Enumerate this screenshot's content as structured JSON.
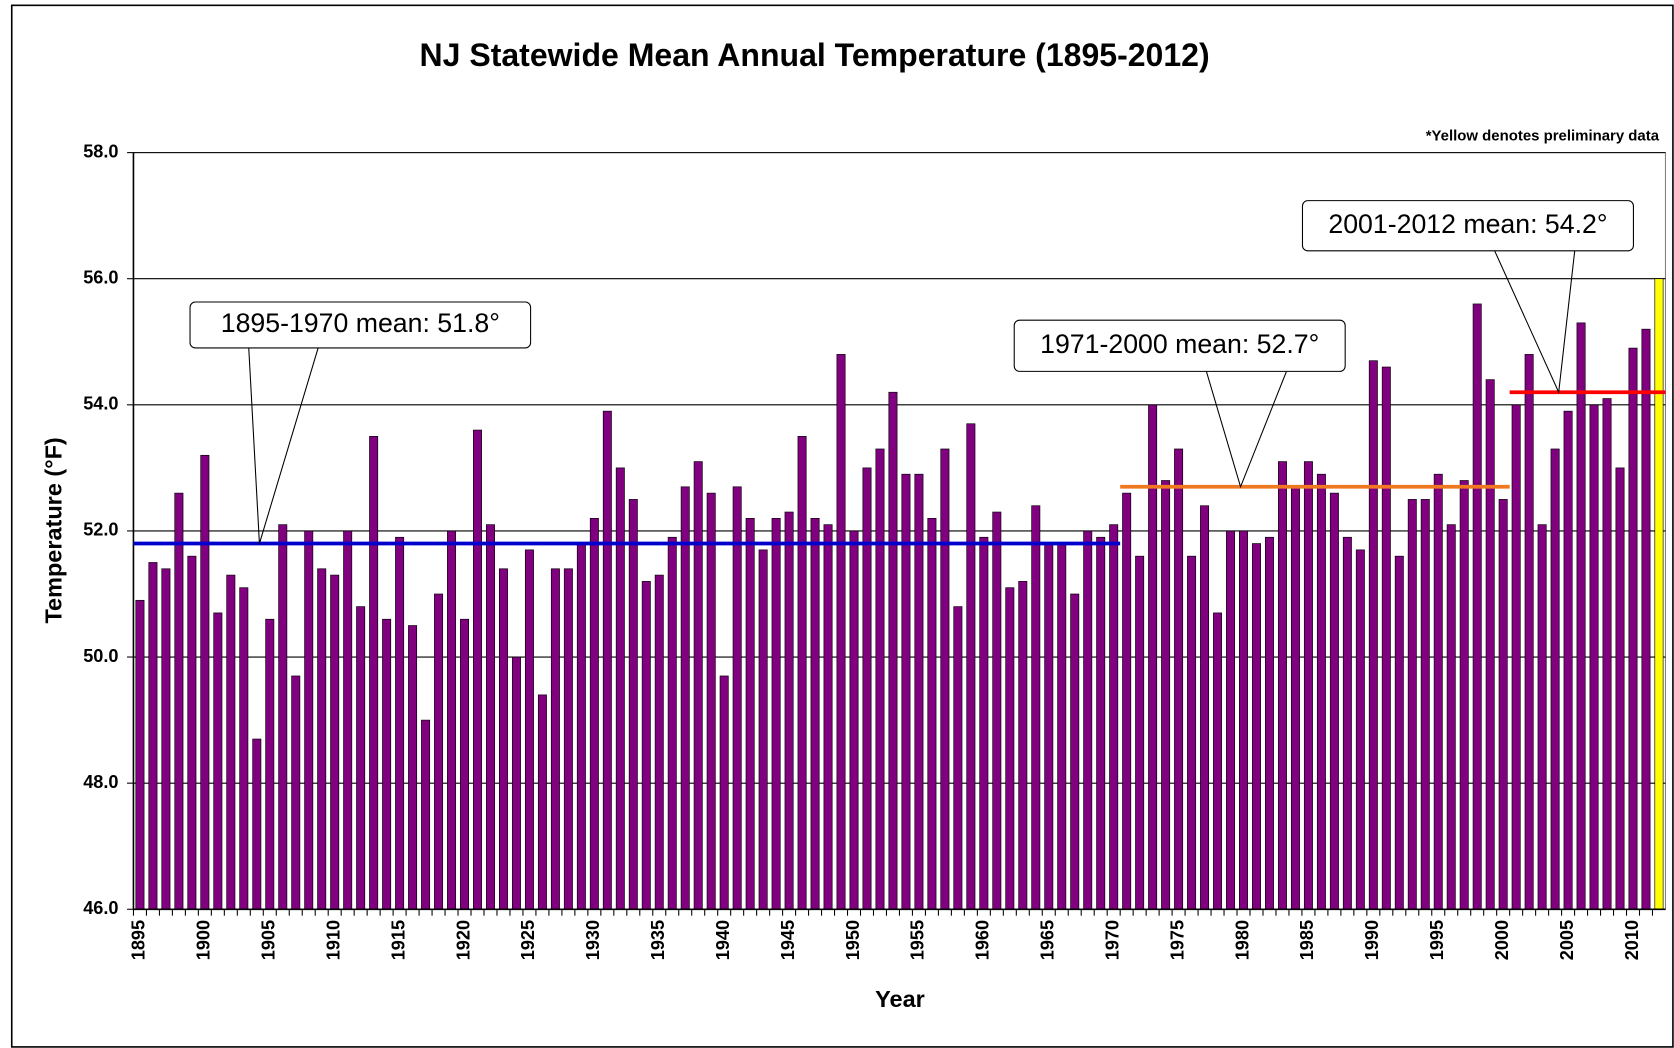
{
  "chart_data": {
    "type": "bar",
    "title": "NJ Statewide Mean Annual Temperature (1895-2012)",
    "note": "*Yellow denotes preliminary data",
    "xlabel": "Year",
    "ylabel": "Temperature (°F)",
    "categories": [
      "1895",
      null,
      null,
      null,
      null,
      "1900",
      null,
      null,
      null,
      null,
      "1905",
      null,
      null,
      null,
      null,
      "1910",
      null,
      null,
      null,
      null,
      "1915",
      null,
      null,
      null,
      null,
      "1920",
      null,
      null,
      null,
      null,
      "1925",
      null,
      null,
      null,
      null,
      "1930",
      null,
      null,
      null,
      null,
      "1935",
      null,
      null,
      null,
      null,
      "1940",
      null,
      null,
      null,
      null,
      "1945",
      null,
      null,
      null,
      null,
      "1950",
      null,
      null,
      null,
      null,
      "1955",
      null,
      null,
      null,
      null,
      "1960",
      null,
      null,
      null,
      null,
      "1965",
      null,
      null,
      null,
      null,
      "1970",
      null,
      null,
      null,
      null,
      "1975",
      null,
      null,
      null,
      null,
      "1980",
      null,
      null,
      null,
      null,
      "1985",
      null,
      null,
      null,
      null,
      "1990",
      null,
      null,
      null,
      null,
      "1995",
      null,
      null,
      null,
      null,
      "2000",
      null,
      null,
      null,
      null,
      "2005",
      null,
      null,
      null,
      null,
      "2010",
      null,
      null
    ],
    "values": [
      50.9,
      51.5,
      51.4,
      52.6,
      51.6,
      53.2,
      50.7,
      51.3,
      51.1,
      48.7,
      50.6,
      52.1,
      49.7,
      52.0,
      51.4,
      51.3,
      52.0,
      50.8,
      53.5,
      50.6,
      51.9,
      50.5,
      49.0,
      51.0,
      52.0,
      50.6,
      53.6,
      52.1,
      51.4,
      50.0,
      51.7,
      49.4,
      51.4,
      51.4,
      51.8,
      52.2,
      53.9,
      53.0,
      52.5,
      51.2,
      51.3,
      51.9,
      52.7,
      53.1,
      52.6,
      49.7,
      52.7,
      52.2,
      51.7,
      52.2,
      52.3,
      53.5,
      52.2,
      52.1,
      54.8,
      52.0,
      53.0,
      53.3,
      54.2,
      52.9,
      52.9,
      52.2,
      53.3,
      50.8,
      53.7,
      51.9,
      52.3,
      51.1,
      51.2,
      52.4,
      51.8,
      51.8,
      51.0,
      52.0,
      51.9,
      52.1,
      52.6,
      51.6,
      54.0,
      52.8,
      53.3,
      51.6,
      52.4,
      50.7,
      52.0,
      52.0,
      51.8,
      51.9,
      53.1,
      52.7,
      53.1,
      52.9,
      52.6,
      51.9,
      51.7,
      54.7,
      54.6,
      51.6,
      52.5,
      52.5,
      52.9,
      52.1,
      52.8,
      55.6,
      54.4,
      52.5,
      54.0,
      54.8,
      52.1,
      53.3,
      53.9,
      55.3,
      54.0,
      54.1,
      53.0,
      54.9,
      55.2,
      56.0
    ],
    "color": "#800080",
    "preliminary_color": "#ffff00",
    "preliminary_years": [
      2012
    ],
    "ylim": [
      46,
      58
    ],
    "yticks": [
      {
        "value": 46,
        "label": "46.0"
      },
      {
        "value": 48,
        "label": "48.0"
      },
      {
        "value": 50,
        "label": "50.0"
      },
      {
        "value": 52,
        "label": "52.0"
      },
      {
        "value": 54,
        "label": "54.0"
      },
      {
        "value": 56,
        "label": "56.0"
      },
      {
        "value": 58,
        "label": "58.0"
      }
    ],
    "grid": true,
    "annotations": [
      {
        "text": "1895-1970 mean: 51.8°",
        "value": 51.8,
        "range": [
          1895,
          1970
        ],
        "color": "#0000cc"
      },
      {
        "text": "1971-2000 mean: 52.7°",
        "value": 52.7,
        "range": [
          1971,
          2000
        ],
        "color": "#f07820"
      },
      {
        "text": "2001-2012 mean: 54.2°",
        "value": 54.2,
        "range": [
          2001,
          2012
        ],
        "color": "#ff0000"
      }
    ]
  }
}
